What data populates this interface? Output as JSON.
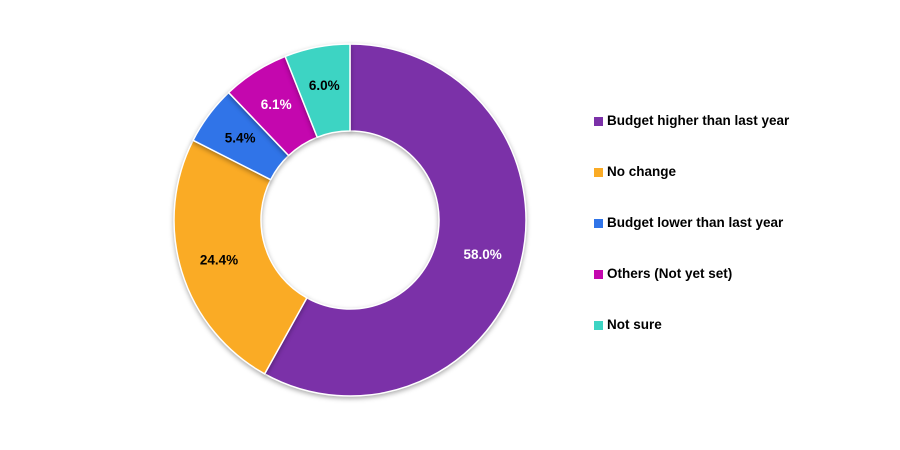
{
  "page": {
    "background_color": "#ffffff"
  },
  "chart_data": {
    "type": "pie",
    "subtype": "donut",
    "title": "",
    "start_angle_deg": 0,
    "direction": "clockwise",
    "legend_position": "right",
    "categories": [
      "Budget higher than last year",
      "No change",
      "Budget lower than last year",
      "Others (Not yet set)",
      "Not sure"
    ],
    "values": [
      58.0,
      24.4,
      5.4,
      6.1,
      6.0
    ],
    "value_labels": [
      "58.0%",
      "24.4%",
      "5.4%",
      "6.1%",
      "6.0%"
    ],
    "colors": [
      "#7B31A8",
      "#FAAB25",
      "#3074E8",
      "#C407AE",
      "#3DD4C3"
    ],
    "value_label_colors": [
      "#ffffff",
      "#000000",
      "#000000",
      "#ffffff",
      "#000000"
    ],
    "hole_color": "#ffffff"
  }
}
